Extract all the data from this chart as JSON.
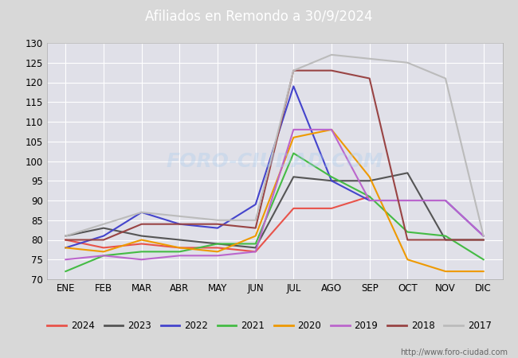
{
  "title": "Afiliados en Remondo a 30/9/2024",
  "months": [
    "ENE",
    "FEB",
    "MAR",
    "ABR",
    "MAY",
    "JUN",
    "JUL",
    "AGO",
    "SEP",
    "OCT",
    "NOV",
    "DIC"
  ],
  "ylim": [
    70,
    130
  ],
  "yticks": [
    70,
    75,
    80,
    85,
    90,
    95,
    100,
    105,
    110,
    115,
    120,
    125,
    130
  ],
  "series": {
    "2024": {
      "color": "#e8534a",
      "data": [
        80,
        78,
        79,
        78,
        78,
        77,
        88,
        88,
        91,
        null,
        null,
        null
      ]
    },
    "2023": {
      "color": "#555555",
      "data": [
        81,
        83,
        81,
        80,
        79,
        78,
        96,
        95,
        95,
        97,
        80,
        80
      ]
    },
    "2022": {
      "color": "#4444cc",
      "data": [
        78,
        81,
        87,
        84,
        83,
        89,
        119,
        95,
        90,
        90,
        90,
        81
      ]
    },
    "2021": {
      "color": "#44bb44",
      "data": [
        72,
        76,
        77,
        77,
        79,
        79,
        102,
        96,
        91,
        82,
        81,
        75
      ]
    },
    "2020": {
      "color": "#ee9900",
      "data": [
        78,
        77,
        80,
        78,
        77,
        81,
        106,
        108,
        96,
        75,
        72,
        72
      ]
    },
    "2019": {
      "color": "#bb66cc",
      "data": [
        75,
        76,
        75,
        76,
        76,
        77,
        108,
        108,
        90,
        90,
        90,
        81
      ]
    },
    "2018": {
      "color": "#994444",
      "data": [
        80,
        80,
        84,
        84,
        84,
        83,
        123,
        123,
        121,
        80,
        80,
        80
      ]
    },
    "2017": {
      "color": "#bbbbbb",
      "data": [
        81,
        84,
        87,
        86,
        85,
        85,
        123,
        127,
        126,
        125,
        121,
        81
      ]
    }
  },
  "watermark": "FORO-CIUDAD.COM",
  "url": "http://www.foro-ciudad.com",
  "background_color": "#d8d8d8",
  "plot_bg_color": "#e0e0e8",
  "title_bg_color": "#5599dd",
  "title_text_color": "#ffffff",
  "grid_color": "#ffffff"
}
